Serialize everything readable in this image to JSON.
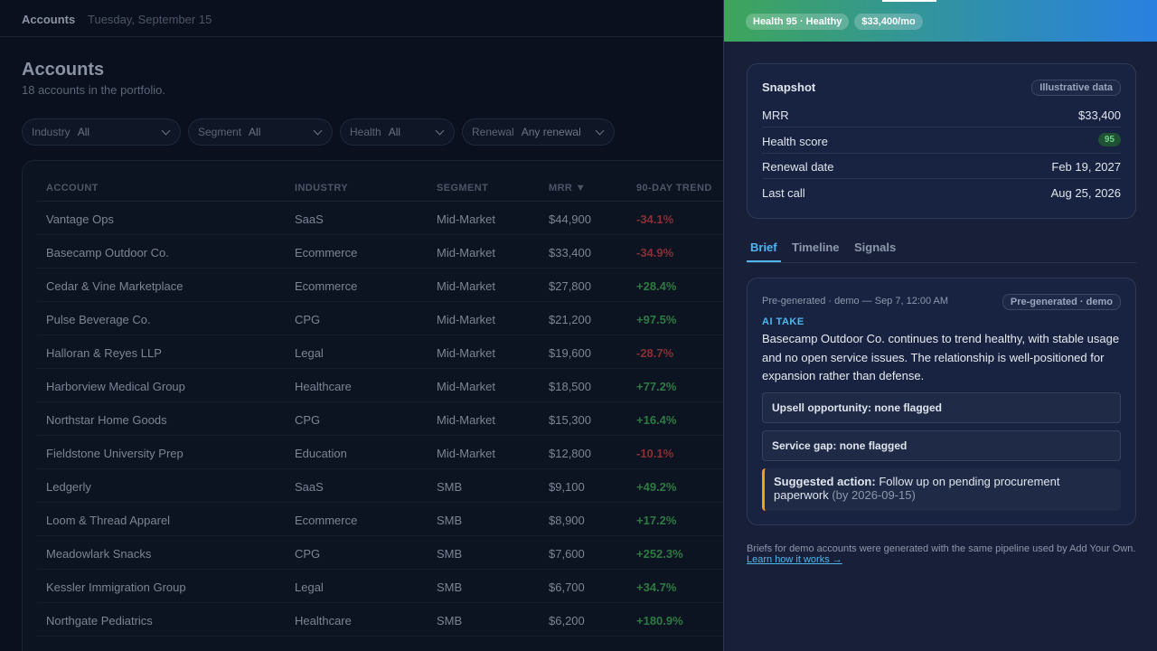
{
  "topbar": {
    "title": "Accounts",
    "date": "Tuesday, September 15"
  },
  "page": {
    "heading": "Accounts",
    "subtitle": "18 accounts in the portfolio."
  },
  "filters": [
    {
      "label": "Industry",
      "value": "All"
    },
    {
      "label": "Segment",
      "value": "All"
    },
    {
      "label": "Health",
      "value": "All"
    },
    {
      "label": "Renewal",
      "value": "Any renewal"
    }
  ],
  "table": {
    "columns": [
      "ACCOUNT",
      "INDUSTRY",
      "SEGMENT",
      "MRR ▼",
      "90-DAY TREND"
    ],
    "rows": [
      [
        "Vantage Ops",
        "SaaS",
        "Mid-Market",
        "$44,900",
        "-34.1%"
      ],
      [
        "Basecamp Outdoor Co.",
        "Ecommerce",
        "Mid-Market",
        "$33,400",
        "-34.9%"
      ],
      [
        "Cedar & Vine Marketplace",
        "Ecommerce",
        "Mid-Market",
        "$27,800",
        "+28.4%"
      ],
      [
        "Pulse Beverage Co.",
        "CPG",
        "Mid-Market",
        "$21,200",
        "+97.5%"
      ],
      [
        "Halloran & Reyes LLP",
        "Legal",
        "Mid-Market",
        "$19,600",
        "-28.7%"
      ],
      [
        "Harborview Medical Group",
        "Healthcare",
        "Mid-Market",
        "$18,500",
        "+77.2%"
      ],
      [
        "Northstar Home Goods",
        "CPG",
        "Mid-Market",
        "$15,300",
        "+16.4%"
      ],
      [
        "Fieldstone University Prep",
        "Education",
        "Mid-Market",
        "$12,800",
        "-10.1%"
      ],
      [
        "Ledgerly",
        "SaaS",
        "SMB",
        "$9,100",
        "+49.2%"
      ],
      [
        "Loom & Thread Apparel",
        "Ecommerce",
        "SMB",
        "$8,900",
        "+17.2%"
      ],
      [
        "Meadowlark Snacks",
        "CPG",
        "SMB",
        "$7,600",
        "+252.3%"
      ],
      [
        "Kessler Immigration Group",
        "Legal",
        "SMB",
        "$6,700",
        "+34.7%"
      ],
      [
        "Northgate Pediatrics",
        "Healthcare",
        "SMB",
        "$6,200",
        "+180.9%"
      ]
    ]
  },
  "drawer": {
    "badges": [
      "Health 95 · Healthy",
      "$33,400/mo"
    ],
    "snapshot": {
      "title": "Snapshot",
      "tag": "Illustrative data",
      "rows": [
        {
          "label": "MRR",
          "value": "$33,400"
        },
        {
          "label": "Health score",
          "value": "95"
        },
        {
          "label": "Renewal date",
          "value": "Feb 19, 2027"
        },
        {
          "label": "Last call",
          "value": "Aug 25, 2026"
        }
      ]
    },
    "tabs": [
      "Brief",
      "Timeline",
      "Signals"
    ],
    "brief": {
      "meta": "Pre-generated · demo — Sep 7, 12:00 AM",
      "tag": "Pre-generated · demo",
      "section": "AI TAKE",
      "text": "Basecamp Outdoor Co. continues to trend healthy, with stable usage and no open service issues. The relationship is well-positioned for expansion rather than defense.",
      "items": [
        "Upsell opportunity: none flagged",
        "Service gap: none flagged"
      ],
      "action": {
        "label": "Suggested action:",
        "text": "Follow up on pending procurement paperwork",
        "due": "(by 2026-09-15)"
      }
    },
    "footer": {
      "text": "Briefs for demo accounts were generated with the same pipeline used by Add Your Own.",
      "link": "Learn how it works →"
    }
  }
}
